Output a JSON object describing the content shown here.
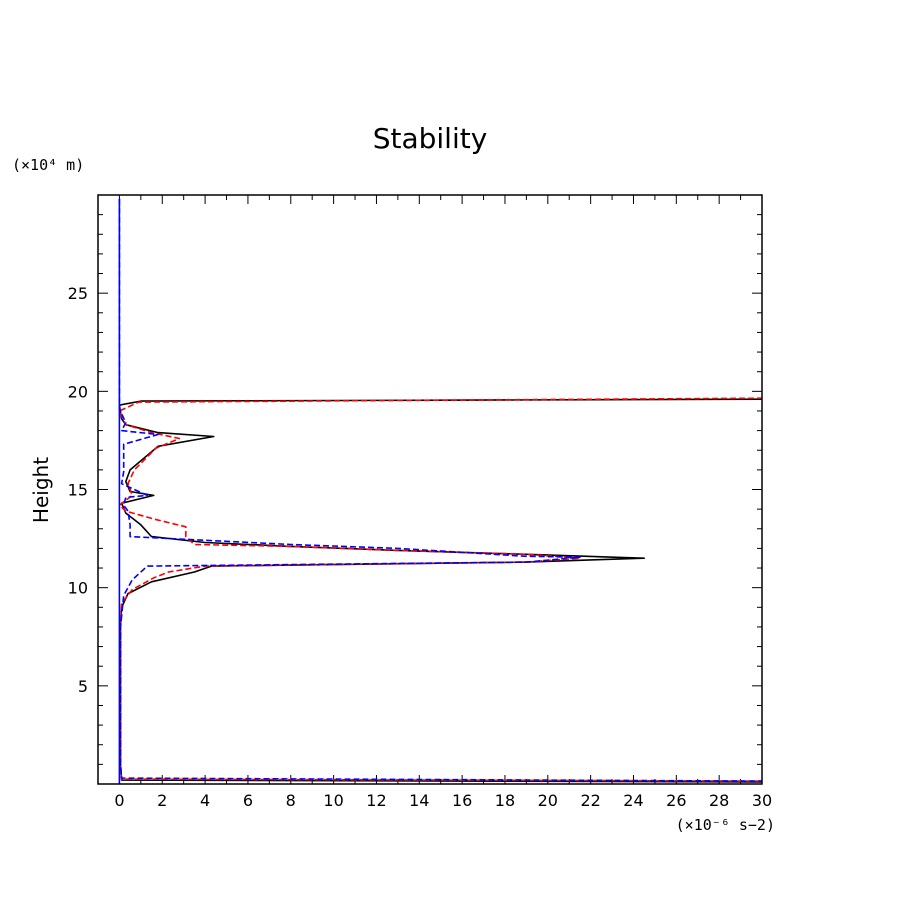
{
  "chart_data": {
    "type": "line",
    "title": "Stability",
    "xlabel": "",
    "ylabel": "Height",
    "x_unit_label": "(×10⁻⁶ s−2)",
    "y_unit_label": "(×10⁴ m)",
    "xlim": [
      -1,
      30
    ],
    "ylim": [
      0,
      30
    ],
    "x_ticks": [
      0,
      2,
      4,
      6,
      8,
      10,
      12,
      14,
      16,
      18,
      20,
      22,
      24,
      26,
      28,
      30
    ],
    "y_ticks": [
      5,
      10,
      15,
      20,
      25
    ],
    "grid": false,
    "series": [
      {
        "color": "#000000",
        "dash": "solid",
        "points": [
          [
            30,
            0.1
          ],
          [
            0.1,
            0.2
          ],
          [
            0.05,
            1
          ],
          [
            0.05,
            5
          ],
          [
            0.05,
            8
          ],
          [
            0.1,
            9
          ],
          [
            0.4,
            9.7
          ],
          [
            1.5,
            10.3
          ],
          [
            3.5,
            10.8
          ],
          [
            4.3,
            11.1
          ],
          [
            19,
            11.3
          ],
          [
            24.5,
            11.5
          ],
          [
            19,
            11.7
          ],
          [
            13,
            11.9
          ],
          [
            8,
            12.1
          ],
          [
            4,
            12.3
          ],
          [
            1.5,
            12.6
          ],
          [
            1,
            13.2
          ],
          [
            0.3,
            13.8
          ],
          [
            0.1,
            14.3
          ],
          [
            1.6,
            14.7
          ],
          [
            0.5,
            14.9
          ],
          [
            0.3,
            15.4
          ],
          [
            0.5,
            16
          ],
          [
            1.8,
            17.2
          ],
          [
            4.4,
            17.7
          ],
          [
            1.8,
            17.9
          ],
          [
            0.3,
            18.3
          ],
          [
            0.1,
            18.6
          ],
          [
            0,
            19.3
          ],
          [
            1,
            19.5
          ],
          [
            15,
            19.55
          ],
          [
            30,
            19.6
          ]
        ]
      },
      {
        "color": "#ff0000",
        "dash": "dashed",
        "points": [
          [
            30,
            0.15
          ],
          [
            0.1,
            0.25
          ],
          [
            0.05,
            1
          ],
          [
            0.05,
            5
          ],
          [
            0.05,
            8
          ],
          [
            0.1,
            9.2
          ],
          [
            0.6,
            9.9
          ],
          [
            1.6,
            10.5
          ],
          [
            2.3,
            10.8
          ],
          [
            4,
            11.1
          ],
          [
            19,
            11.3
          ],
          [
            21.5,
            11.5
          ],
          [
            19,
            11.7
          ],
          [
            13,
            11.9
          ],
          [
            8,
            12.1
          ],
          [
            3.5,
            12.2
          ],
          [
            3.1,
            12.6
          ],
          [
            3.1,
            13.1
          ],
          [
            1.6,
            13.5
          ],
          [
            0.3,
            13.9
          ],
          [
            0,
            14.2
          ],
          [
            0.6,
            14.7
          ],
          [
            0.4,
            15.3
          ],
          [
            0.7,
            16
          ],
          [
            1.7,
            17.1
          ],
          [
            2.8,
            17.6
          ],
          [
            1.5,
            17.9
          ],
          [
            0.3,
            18.3
          ],
          [
            0,
            19
          ],
          [
            0.9,
            19.45
          ],
          [
            15,
            19.55
          ],
          [
            30,
            19.65
          ]
        ]
      },
      {
        "color": "#0000ff",
        "dash": "dashed",
        "points": [
          [
            0,
            29.8
          ],
          [
            0,
            25
          ],
          [
            0,
            20
          ],
          [
            0,
            19.1
          ],
          [
            0.3,
            18.4
          ],
          [
            0.1,
            18
          ],
          [
            1.8,
            17.8
          ],
          [
            0.2,
            17.3
          ],
          [
            0.2,
            15.9
          ],
          [
            0.1,
            15.3
          ],
          [
            1.3,
            14.7
          ],
          [
            0.3,
            14.6
          ],
          [
            0.2,
            14.2
          ],
          [
            0.4,
            13.9
          ],
          [
            0.5,
            13.2
          ],
          [
            0.5,
            12.6
          ],
          [
            8,
            12.2
          ],
          [
            13,
            12
          ],
          [
            19,
            11.6
          ],
          [
            21.5,
            11.55
          ],
          [
            19,
            11.3
          ],
          [
            1.3,
            11.1
          ],
          [
            0.6,
            10.4
          ],
          [
            0.2,
            9.6
          ],
          [
            0.05,
            8
          ],
          [
            0.05,
            5
          ],
          [
            0.05,
            1
          ],
          [
            0.1,
            0.3
          ],
          [
            30,
            0.15
          ]
        ]
      },
      {
        "color": "#0000ff",
        "dash": "solid",
        "points": [
          [
            0,
            29.8
          ],
          [
            0,
            0
          ]
        ]
      }
    ]
  }
}
